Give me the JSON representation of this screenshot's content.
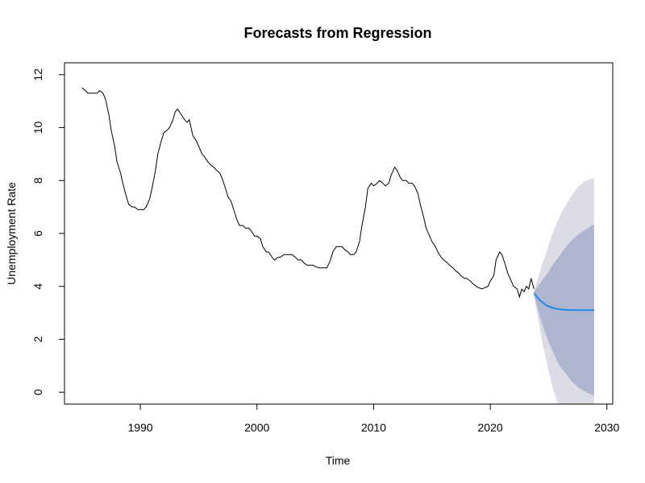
{
  "chart_data": {
    "type": "line",
    "title": "Forecasts from Regression",
    "xlabel": "Time",
    "ylabel": "Unemployment Rate",
    "xlim": [
      1983.5,
      2030.5
    ],
    "ylim": [
      -0.45,
      12.45
    ],
    "x_ticks": [
      1990,
      2000,
      2010,
      2020,
      2030
    ],
    "y_ticks": [
      0,
      2,
      4,
      6,
      8,
      10,
      12
    ],
    "grid": false,
    "legend": "none",
    "colors": {
      "observed": "#000000",
      "forecast": "#1e88e5",
      "band_95": "#dcdce4",
      "band_80": "#b0b5cf",
      "axes": "#000000"
    },
    "series": [
      {
        "role": "observed",
        "points": [
          [
            1985.0,
            11.5
          ],
          [
            1985.3,
            11.4
          ],
          [
            1985.5,
            11.3
          ],
          [
            1985.8,
            11.3
          ],
          [
            1986.0,
            11.3
          ],
          [
            1986.3,
            11.3
          ],
          [
            1986.5,
            11.4
          ],
          [
            1986.8,
            11.3
          ],
          [
            1987.0,
            11.1
          ],
          [
            1987.3,
            10.5
          ],
          [
            1987.5,
            9.9
          ],
          [
            1987.8,
            9.3
          ],
          [
            1988.0,
            8.7
          ],
          [
            1988.3,
            8.3
          ],
          [
            1988.5,
            7.9
          ],
          [
            1988.8,
            7.4
          ],
          [
            1989.0,
            7.1
          ],
          [
            1989.3,
            7.0
          ],
          [
            1989.5,
            7.0
          ],
          [
            1989.8,
            6.9
          ],
          [
            1990.0,
            6.9
          ],
          [
            1990.3,
            6.9
          ],
          [
            1990.5,
            7.0
          ],
          [
            1990.8,
            7.3
          ],
          [
            1991.0,
            7.7
          ],
          [
            1991.3,
            8.4
          ],
          [
            1991.5,
            9.0
          ],
          [
            1991.8,
            9.5
          ],
          [
            1992.0,
            9.8
          ],
          [
            1992.3,
            9.9
          ],
          [
            1992.5,
            10.0
          ],
          [
            1992.8,
            10.3
          ],
          [
            1993.0,
            10.6
          ],
          [
            1993.2,
            10.7
          ],
          [
            1993.5,
            10.5
          ],
          [
            1993.8,
            10.3
          ],
          [
            1994.0,
            10.2
          ],
          [
            1994.2,
            10.3
          ],
          [
            1994.5,
            9.7
          ],
          [
            1994.8,
            9.5
          ],
          [
            1995.0,
            9.3
          ],
          [
            1995.3,
            9.0
          ],
          [
            1995.5,
            8.9
          ],
          [
            1995.8,
            8.7
          ],
          [
            1996.0,
            8.6
          ],
          [
            1996.3,
            8.5
          ],
          [
            1996.5,
            8.4
          ],
          [
            1996.8,
            8.3
          ],
          [
            1997.0,
            8.1
          ],
          [
            1997.3,
            7.7
          ],
          [
            1997.5,
            7.4
          ],
          [
            1997.8,
            7.2
          ],
          [
            1998.0,
            6.9
          ],
          [
            1998.3,
            6.5
          ],
          [
            1998.5,
            6.3
          ],
          [
            1998.8,
            6.3
          ],
          [
            1999.0,
            6.2
          ],
          [
            1999.3,
            6.2
          ],
          [
            1999.5,
            6.1
          ],
          [
            1999.8,
            5.9
          ],
          [
            2000.0,
            5.9
          ],
          [
            2000.3,
            5.8
          ],
          [
            2000.5,
            5.5
          ],
          [
            2000.8,
            5.3
          ],
          [
            2001.0,
            5.3
          ],
          [
            2001.3,
            5.1
          ],
          [
            2001.5,
            5.0
          ],
          [
            2001.8,
            5.1
          ],
          [
            2002.0,
            5.1
          ],
          [
            2002.3,
            5.2
          ],
          [
            2002.5,
            5.2
          ],
          [
            2002.8,
            5.2
          ],
          [
            2003.0,
            5.2
          ],
          [
            2003.3,
            5.1
          ],
          [
            2003.5,
            5.0
          ],
          [
            2003.8,
            5.0
          ],
          [
            2004.0,
            4.9
          ],
          [
            2004.3,
            4.8
          ],
          [
            2004.5,
            4.8
          ],
          [
            2004.8,
            4.8
          ],
          [
            2005.0,
            4.75
          ],
          [
            2005.3,
            4.7
          ],
          [
            2005.5,
            4.7
          ],
          [
            2005.8,
            4.7
          ],
          [
            2006.0,
            4.7
          ],
          [
            2006.3,
            5.0
          ],
          [
            2006.5,
            5.3
          ],
          [
            2006.8,
            5.5
          ],
          [
            2007.0,
            5.5
          ],
          [
            2007.3,
            5.5
          ],
          [
            2007.5,
            5.4
          ],
          [
            2007.8,
            5.3
          ],
          [
            2008.0,
            5.2
          ],
          [
            2008.3,
            5.2
          ],
          [
            2008.5,
            5.3
          ],
          [
            2008.8,
            5.7
          ],
          [
            2009.0,
            6.3
          ],
          [
            2009.3,
            7.0
          ],
          [
            2009.5,
            7.7
          ],
          [
            2009.8,
            7.9
          ],
          [
            2010.0,
            7.8
          ],
          [
            2010.3,
            7.9
          ],
          [
            2010.5,
            8.0
          ],
          [
            2010.8,
            7.9
          ],
          [
            2011.0,
            7.8
          ],
          [
            2011.3,
            7.9
          ],
          [
            2011.5,
            8.2
          ],
          [
            2011.8,
            8.5
          ],
          [
            2012.0,
            8.4
          ],
          [
            2012.3,
            8.1
          ],
          [
            2012.5,
            8.0
          ],
          [
            2012.8,
            8.0
          ],
          [
            2013.0,
            7.9
          ],
          [
            2013.3,
            7.9
          ],
          [
            2013.5,
            7.8
          ],
          [
            2013.8,
            7.5
          ],
          [
            2014.0,
            7.1
          ],
          [
            2014.3,
            6.6
          ],
          [
            2014.5,
            6.2
          ],
          [
            2014.8,
            5.9
          ],
          [
            2015.0,
            5.7
          ],
          [
            2015.3,
            5.5
          ],
          [
            2015.5,
            5.3
          ],
          [
            2015.8,
            5.1
          ],
          [
            2016.0,
            5.0
          ],
          [
            2016.3,
            4.9
          ],
          [
            2016.5,
            4.8
          ],
          [
            2016.8,
            4.7
          ],
          [
            2017.0,
            4.6
          ],
          [
            2017.3,
            4.5
          ],
          [
            2017.5,
            4.4
          ],
          [
            2017.8,
            4.3
          ],
          [
            2018.0,
            4.3
          ],
          [
            2018.3,
            4.2
          ],
          [
            2018.5,
            4.1
          ],
          [
            2018.8,
            4.0
          ],
          [
            2019.0,
            3.95
          ],
          [
            2019.3,
            3.9
          ],
          [
            2019.5,
            3.95
          ],
          [
            2019.8,
            4.0
          ],
          [
            2020.0,
            4.2
          ],
          [
            2020.3,
            4.4
          ],
          [
            2020.5,
            5.0
          ],
          [
            2020.8,
            5.3
          ],
          [
            2021.0,
            5.2
          ],
          [
            2021.3,
            4.8
          ],
          [
            2021.5,
            4.5
          ],
          [
            2021.8,
            4.2
          ],
          [
            2022.0,
            4.0
          ],
          [
            2022.3,
            3.9
          ],
          [
            2022.5,
            3.6
          ],
          [
            2022.7,
            3.9
          ],
          [
            2022.9,
            3.8
          ],
          [
            2023.1,
            4.0
          ],
          [
            2023.3,
            3.9
          ],
          [
            2023.5,
            4.3
          ],
          [
            2023.75,
            3.9
          ]
        ]
      },
      {
        "role": "forecast",
        "x": [
          2023.75,
          2024.0,
          2024.25,
          2024.5,
          2024.75,
          2025.0,
          2025.25,
          2025.5,
          2025.75,
          2026.0,
          2026.5,
          2027.0,
          2027.5,
          2028.0,
          2028.5,
          2028.9
        ],
        "mean": [
          3.75,
          3.6,
          3.48,
          3.38,
          3.3,
          3.24,
          3.2,
          3.17,
          3.15,
          3.13,
          3.11,
          3.1,
          3.1,
          3.1,
          3.1,
          3.1
        ],
        "lo80": [
          3.7,
          3.25,
          2.85,
          2.5,
          2.2,
          1.9,
          1.65,
          1.4,
          1.15,
          0.95,
          0.7,
          0.4,
          0.2,
          0.05,
          -0.05,
          -0.15
        ],
        "hi80": [
          3.8,
          3.95,
          4.1,
          4.25,
          4.4,
          4.55,
          4.75,
          4.9,
          5.05,
          5.2,
          5.5,
          5.75,
          5.95,
          6.1,
          6.25,
          6.35
        ],
        "lo95": [
          3.65,
          3.0,
          2.4,
          1.8,
          1.3,
          0.8,
          0.35,
          -0.05,
          -0.4,
          -0.75,
          -1.3,
          -1.8,
          -2.2,
          -2.6,
          -3.0,
          -3.3
        ],
        "hi95": [
          3.85,
          4.2,
          4.55,
          4.9,
          5.2,
          5.55,
          5.9,
          6.2,
          6.45,
          6.7,
          7.1,
          7.45,
          7.75,
          7.95,
          8.05,
          8.1
        ]
      }
    ]
  }
}
